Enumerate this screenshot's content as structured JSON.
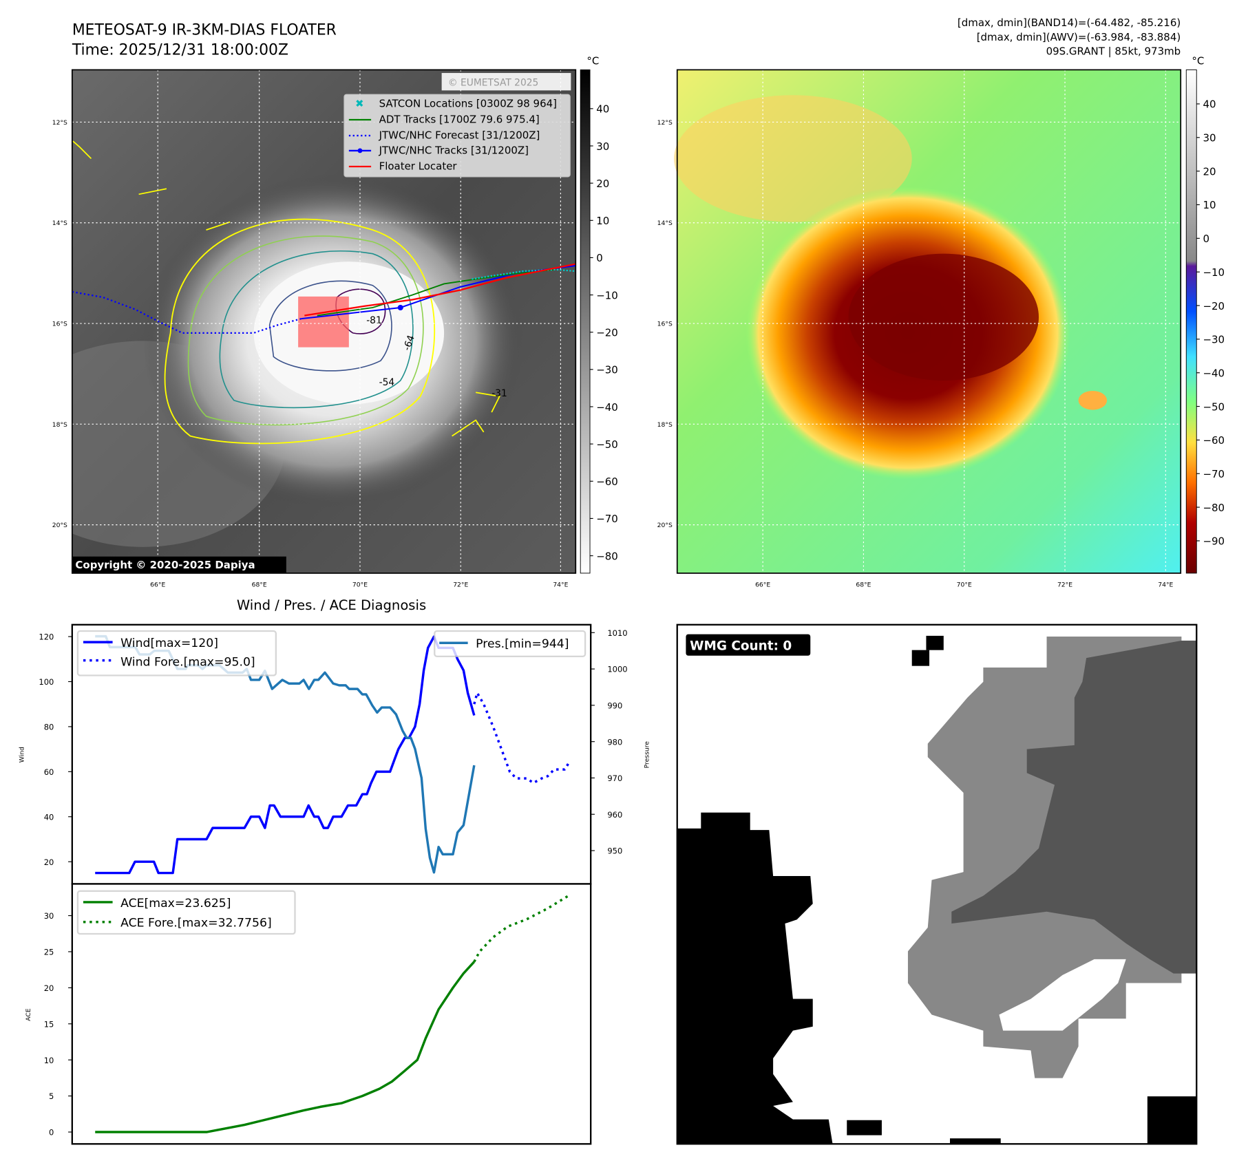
{
  "header": {
    "title_line1": "METEOSAT-9 IR-3KM-DIAS FLOATER",
    "title_line2": "Time: 2025/12/31 18:00:00Z",
    "stats_line1": "[dmax, dmin](BAND14)=(-64.482, -85.216)",
    "stats_line2": "[dmax, dmin](AWV)=(-63.984, -83.884)",
    "stats_line3": "09S.GRANT | 85kt, 973mb"
  },
  "ir_map": {
    "unit": "°C",
    "colorbar_ticks": [
      "40",
      "30",
      "20",
      "10",
      "0",
      "−10",
      "−20",
      "−30",
      "−40",
      "−50",
      "−60",
      "−70",
      "−80"
    ],
    "lat_labels": [
      "12°S",
      "14°S",
      "16°S",
      "18°S",
      "20°S"
    ],
    "lon_labels": [
      "66°E",
      "68°E",
      "70°E",
      "72°E",
      "74°E"
    ],
    "legend": [
      "SATCON Locations [0300Z 98 964]",
      "ADT Tracks [1700Z 79.6 975.4]",
      "JTWC/NHC Forecast [31/1200Z]",
      "JTWC/NHC Tracks [31/1200Z]",
      "Floater Locater"
    ],
    "contour_labels": [
      "-81",
      "-64",
      "-54",
      "-31"
    ],
    "copyright": "Copyright © 2020-2025 Dapiya",
    "watermark": "© EUMETSAT 2025"
  },
  "awv_map": {
    "unit": "°C",
    "colorbar_ticks": [
      "40",
      "30",
      "20",
      "10",
      "0",
      "−10",
      "−20",
      "−30",
      "−40",
      "−50",
      "−60",
      "−70",
      "−80",
      "−90"
    ],
    "lat_labels": [
      "12°S",
      "14°S",
      "16°S",
      "18°S",
      "20°S"
    ],
    "lon_labels": [
      "66°E",
      "68°E",
      "70°E",
      "72°E",
      "74°E"
    ]
  },
  "wmg": {
    "label": "WMG Count: 0"
  },
  "colors": {
    "wind": "#0000ff",
    "pressure": "#1f77b4",
    "ace": "#008000",
    "track_red": "#ff0000",
    "contour_yellow": "#ffff00"
  },
  "chart_data": [
    {
      "type": "line",
      "title": "Wind / Pres. / ACE Diagnosis",
      "ylabel": "Wind",
      "y2label": "Pressure",
      "ylim": [
        10,
        125
      ],
      "y2lim": [
        940,
        1012
      ],
      "yticks": [
        20,
        40,
        60,
        80,
        100,
        120
      ],
      "y2ticks": [
        950,
        960,
        970,
        980,
        990,
        1000,
        1010
      ],
      "xlim": [
        -6,
        131
      ],
      "legend_left": [
        "Wind[max=120]",
        "Wind Fore.[max=95.0]"
      ],
      "legend_right": [
        "Pres.[min=944]"
      ],
      "series": [
        {
          "name": "Wind",
          "axis": "left",
          "style": "solid",
          "points": [
            [
              0,
              15
            ],
            [
              9,
              15
            ],
            [
              10.5,
              20
            ],
            [
              15.5,
              20
            ],
            [
              16.7,
              15
            ],
            [
              20.5,
              15
            ],
            [
              21.7,
              30
            ],
            [
              29.4,
              30
            ],
            [
              31,
              35
            ],
            [
              39.4,
              35
            ],
            [
              41.1,
              40
            ],
            [
              43.3,
              40
            ],
            [
              44.8,
              35
            ],
            [
              46.1,
              45
            ],
            [
              47.2,
              45
            ],
            [
              48.9,
              40
            ],
            [
              55,
              40
            ],
            [
              56.3,
              45
            ],
            [
              57.8,
              40
            ],
            [
              58.9,
              40
            ],
            [
              60.3,
              35
            ],
            [
              61.4,
              35
            ],
            [
              62.8,
              40
            ],
            [
              65,
              40
            ],
            [
              66.7,
              45
            ],
            [
              68.9,
              45
            ],
            [
              70.5,
              50
            ],
            [
              71.7,
              50
            ],
            [
              72.8,
              55
            ],
            [
              74.2,
              60
            ],
            [
              77.8,
              60
            ],
            [
              78.9,
              65
            ],
            [
              80,
              70
            ],
            [
              81.7,
              75
            ],
            [
              82.8,
              75
            ],
            [
              84.4,
              80
            ],
            [
              85.6,
              90
            ],
            [
              86.7,
              105
            ],
            [
              87.8,
              115
            ],
            [
              89.4,
              120
            ],
            [
              90.6,
              115
            ],
            [
              94.4,
              115
            ],
            [
              95.6,
              110
            ],
            [
              97.2,
              105
            ],
            [
              98.3,
              95
            ],
            [
              100,
              85
            ]
          ]
        },
        {
          "name": "Wind Fore.",
          "axis": "left",
          "style": "dotted",
          "points": [
            [
              100,
              90
            ],
            [
              100.8,
              95
            ],
            [
              102.5,
              90
            ],
            [
              105,
              80
            ],
            [
              107.2,
              70
            ],
            [
              109.4,
              60
            ],
            [
              111.1,
              57
            ],
            [
              113.9,
              57
            ],
            [
              115.6,
              55
            ],
            [
              117.8,
              57
            ],
            [
              119.4,
              58
            ],
            [
              121.1,
              61
            ],
            [
              123.9,
              61
            ],
            [
              125,
              64
            ]
          ]
        },
        {
          "name": "Pres.",
          "axis": "right",
          "style": "solid",
          "points": [
            [
              0,
              1009
            ],
            [
              2.8,
              1009
            ],
            [
              3.9,
              1006
            ],
            [
              10.6,
              1006
            ],
            [
              11.7,
              1004
            ],
            [
              14.4,
              1004
            ],
            [
              15.6,
              1005
            ],
            [
              19.4,
              1005
            ],
            [
              21.7,
              1000
            ],
            [
              23.9,
              1000
            ],
            [
              24.4,
              1001
            ],
            [
              27.2,
              1001
            ],
            [
              28.3,
              1000
            ],
            [
              29.4,
              1001
            ],
            [
              32.8,
              1001
            ],
            [
              35,
              999
            ],
            [
              38.9,
              999
            ],
            [
              40,
              1000
            ],
            [
              41.1,
              997
            ],
            [
              43.3,
              997
            ],
            [
              44.8,
              999.5
            ],
            [
              46.7,
              994.5
            ],
            [
              49.4,
              997
            ],
            [
              51.1,
              996
            ],
            [
              53.9,
              996
            ],
            [
              55,
              997
            ],
            [
              56.4,
              994.5
            ],
            [
              57.8,
              997
            ],
            [
              58.9,
              997
            ],
            [
              60.6,
              999
            ],
            [
              62.8,
              996
            ],
            [
              64.4,
              995.5
            ],
            [
              66.1,
              995.5
            ],
            [
              67,
              994.5
            ],
            [
              69.2,
              994.5
            ],
            [
              70.5,
              993
            ],
            [
              71.5,
              993
            ],
            [
              73.1,
              990
            ],
            [
              74.4,
              988
            ],
            [
              75.6,
              989.4
            ],
            [
              77.8,
              989.4
            ],
            [
              79.4,
              987.5
            ],
            [
              81.1,
              983
            ],
            [
              82.2,
              981
            ],
            [
              83.3,
              981
            ],
            [
              84.4,
              978
            ],
            [
              86.1,
              970
            ],
            [
              87.2,
              956
            ],
            [
              88.3,
              948
            ],
            [
              89.4,
              944
            ],
            [
              90.6,
              951
            ],
            [
              91.7,
              949
            ],
            [
              94.4,
              949
            ],
            [
              95.6,
              955
            ],
            [
              97.2,
              957
            ],
            [
              100,
              973.5
            ]
          ]
        }
      ]
    },
    {
      "type": "line",
      "ylabel": "ACE",
      "ylim": [
        -1,
        34
      ],
      "yticks": [
        0,
        5,
        10,
        15,
        20,
        25,
        30
      ],
      "xlim": [
        -6,
        131
      ],
      "legend": [
        "ACE[max=23.625]",
        "ACE Fore.[max=32.7756]"
      ],
      "series": [
        {
          "name": "ACE",
          "style": "solid",
          "points": [
            [
              0,
              0
            ],
            [
              29.4,
              0
            ],
            [
              39.4,
              1
            ],
            [
              47.2,
              2
            ],
            [
              55,
              3
            ],
            [
              59.4,
              3.5
            ],
            [
              65,
              4
            ],
            [
              70.5,
              5
            ],
            [
              75,
              6
            ],
            [
              78.3,
              7
            ],
            [
              81.7,
              8.5
            ],
            [
              85,
              10
            ],
            [
              87.2,
              13
            ],
            [
              90.6,
              17
            ],
            [
              94.4,
              20
            ],
            [
              97.2,
              22
            ],
            [
              100,
              23.6
            ]
          ]
        },
        {
          "name": "ACE Fore.",
          "style": "dotted",
          "points": [
            [
              100,
              23.6
            ],
            [
              101.4,
              25
            ],
            [
              105,
              27
            ],
            [
              108.9,
              28.5
            ],
            [
              113.9,
              29.5
            ],
            [
              119.4,
              31
            ],
            [
              125,
              32.8
            ]
          ]
        }
      ]
    }
  ]
}
